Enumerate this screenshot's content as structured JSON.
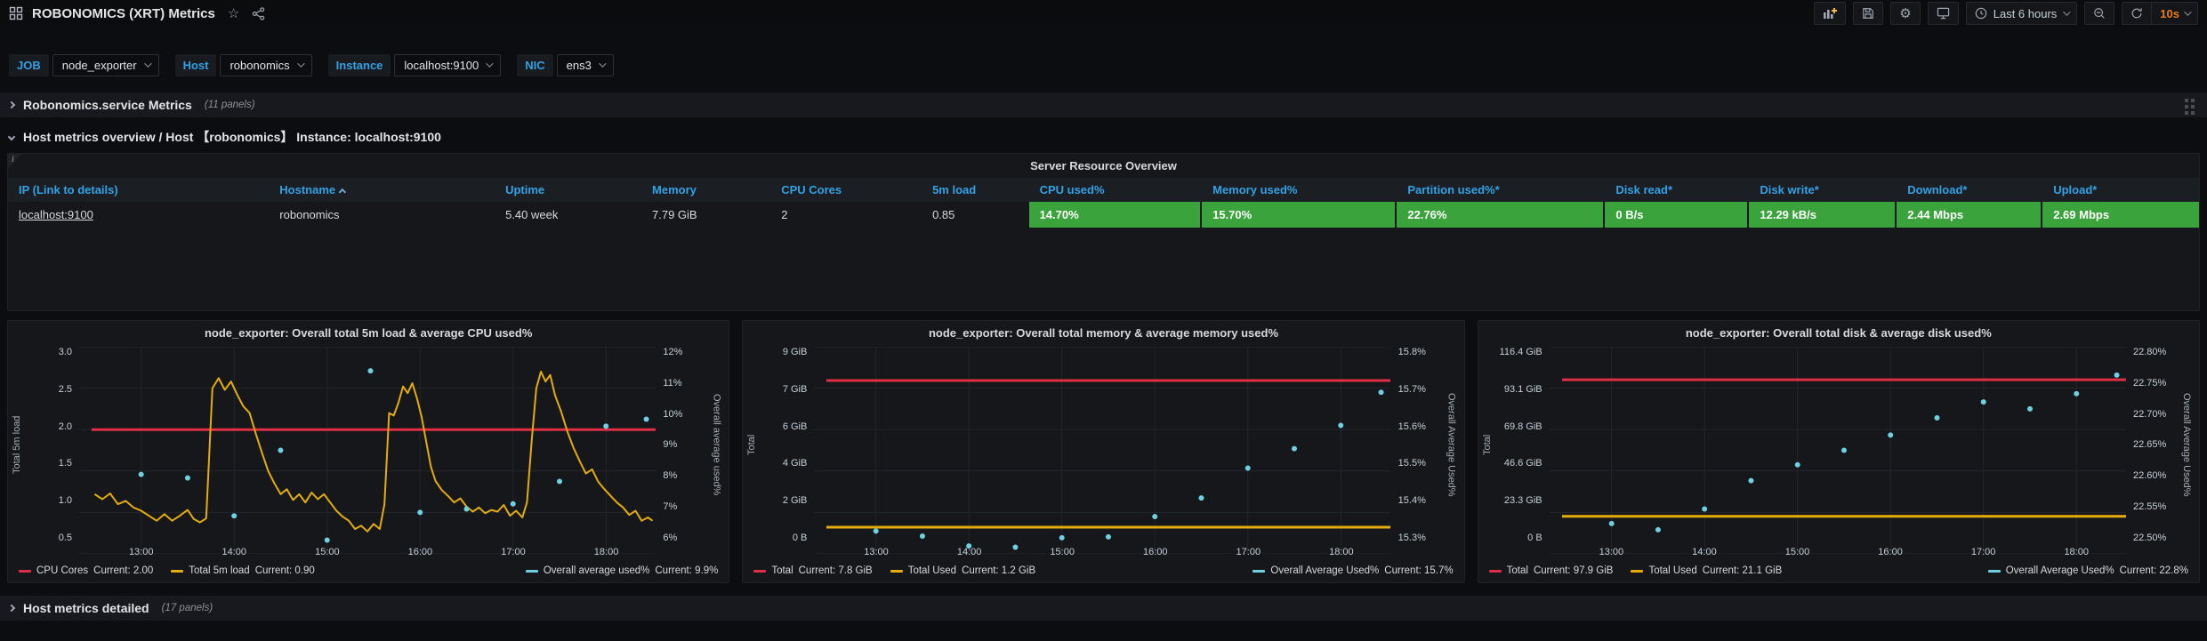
{
  "header": {
    "title": "ROBONOMICS (XRT) Metrics",
    "time_range": "Last 6 hours",
    "refresh_interval": "10s"
  },
  "icons": {
    "star": "☆",
    "gear": "⚙",
    "info": "i"
  },
  "colors": {
    "blue": "#33a2e5",
    "green": "#3aa33c",
    "red": "#e02f44",
    "yellow": "#e5ac0e",
    "cyan": "#6ed0e0",
    "orange": "#eb7b18"
  },
  "filters": [
    {
      "label": "JOB",
      "value": "node_exporter"
    },
    {
      "label": "Host",
      "value": "robonomics"
    },
    {
      "label": "Instance",
      "value": "localhost:9100"
    },
    {
      "label": "NIC",
      "value": "ens3"
    }
  ],
  "rows": [
    {
      "title": "Robonomics.service Metrics",
      "count": "(11 panels)",
      "collapsed": true
    },
    {
      "title": "Host metrics overview / Host 【robonomics】 Instance:  localhost:9100",
      "count": "",
      "collapsed": false
    },
    {
      "title": "Host metrics detailed",
      "count": "(17 panels)",
      "collapsed": true
    }
  ],
  "table": {
    "title": "Server Resource Overview",
    "columns": [
      "IP  (Link to details)",
      "Hostname",
      "Uptime",
      "Memory",
      "CPU Cores",
      "5m load",
      "CPU used%",
      "Memory used%",
      "Partition used%*",
      "Disk read*",
      "Disk write*",
      "Download*",
      "Upload*"
    ],
    "sorted_column": "Hostname",
    "cells": [
      "localhost:9100",
      "robonomics",
      "5.40 week",
      "7.79 GiB",
      "2",
      "0.85",
      "14.70%",
      "15.70%",
      "22.76%",
      "0 B/s",
      "12.29 kB/s",
      "2.44 Mbps",
      "2.69 Mbps"
    ]
  },
  "chart_data": [
    {
      "type": "line",
      "title": "node_exporter:  Overall total 5m load & average CPU used%",
      "x_range": [
        740,
        1112
      ],
      "x_gridlines": [
        780,
        840,
        900,
        960,
        1020,
        1080
      ],
      "x_tick_labels": [
        "13:00",
        "14:00",
        "15:00",
        "16:00",
        "17:00",
        "18:00"
      ],
      "left_axis": {
        "label": "Total 5m load",
        "min": 0.5,
        "max": 3.0,
        "ticks": [
          "0.5",
          "1.0",
          "1.5",
          "2.0",
          "2.5",
          "3.0"
        ]
      },
      "right_axis": {
        "label": "Overall average used%",
        "min": 6,
        "max": 12,
        "ticks": [
          "6%",
          "7%",
          "8%",
          "9%",
          "10%",
          "11%",
          "12%"
        ]
      },
      "series": [
        {
          "name": "CPU Cores",
          "current": "Current: 2.00",
          "type": "hline",
          "axis": "left",
          "side": "left",
          "color": "#e02f44",
          "value": 2.0
        },
        {
          "name": "Total 5m load",
          "current": "Current: 0.90",
          "type": "line",
          "axis": "left",
          "side": "left",
          "color": "#e5ac0e",
          "points": [
            [
              750,
              1.22
            ],
            [
              755,
              1.16
            ],
            [
              760,
              1.23
            ],
            [
              765,
              1.1
            ],
            [
              770,
              1.14
            ],
            [
              775,
              1.06
            ],
            [
              780,
              1.02
            ],
            [
              785,
              0.96
            ],
            [
              790,
              0.9
            ],
            [
              795,
              0.98
            ],
            [
              800,
              0.9
            ],
            [
              805,
              0.96
            ],
            [
              810,
              1.03
            ],
            [
              814,
              0.92
            ],
            [
              818,
              0.88
            ],
            [
              822,
              0.93
            ],
            [
              826,
              2.5
            ],
            [
              830,
              2.62
            ],
            [
              834,
              2.48
            ],
            [
              838,
              2.58
            ],
            [
              842,
              2.42
            ],
            [
              846,
              2.28
            ],
            [
              850,
              2.2
            ],
            [
              854,
              1.95
            ],
            [
              858,
              1.72
            ],
            [
              862,
              1.5
            ],
            [
              866,
              1.35
            ],
            [
              870,
              1.22
            ],
            [
              874,
              1.28
            ],
            [
              878,
              1.15
            ],
            [
              882,
              1.22
            ],
            [
              886,
              1.12
            ],
            [
              890,
              1.24
            ],
            [
              894,
              1.16
            ],
            [
              898,
              1.22
            ],
            [
              902,
              1.12
            ],
            [
              906,
              1.02
            ],
            [
              910,
              0.95
            ],
            [
              914,
              0.9
            ],
            [
              918,
              0.8
            ],
            [
              922,
              0.84
            ],
            [
              926,
              0.77
            ],
            [
              930,
              0.86
            ],
            [
              934,
              0.8
            ],
            [
              937,
              1.1
            ],
            [
              940,
              2.2
            ],
            [
              943,
              2.17
            ],
            [
              946,
              2.32
            ],
            [
              949,
              2.52
            ],
            [
              952,
              2.44
            ],
            [
              955,
              2.56
            ],
            [
              958,
              2.38
            ],
            [
              961,
              2.15
            ],
            [
              964,
              1.85
            ],
            [
              967,
              1.55
            ],
            [
              970,
              1.38
            ],
            [
              974,
              1.27
            ],
            [
              978,
              1.2
            ],
            [
              982,
              1.12
            ],
            [
              986,
              1.17
            ],
            [
              990,
              1.07
            ],
            [
              994,
              1.01
            ],
            [
              998,
              1.06
            ],
            [
              1002,
              0.99
            ],
            [
              1006,
              1.03
            ],
            [
              1010,
              1.01
            ],
            [
              1014,
              1.09
            ],
            [
              1018,
              0.96
            ],
            [
              1022,
              1.02
            ],
            [
              1026,
              0.94
            ],
            [
              1029,
              1.12
            ],
            [
              1032,
              1.85
            ],
            [
              1035,
              2.5
            ],
            [
              1038,
              2.7
            ],
            [
              1041,
              2.58
            ],
            [
              1044,
              2.66
            ],
            [
              1047,
              2.42
            ],
            [
              1051,
              2.22
            ],
            [
              1055,
              1.98
            ],
            [
              1059,
              1.78
            ],
            [
              1063,
              1.62
            ],
            [
              1067,
              1.47
            ],
            [
              1071,
              1.52
            ],
            [
              1075,
              1.37
            ],
            [
              1079,
              1.28
            ],
            [
              1083,
              1.2
            ],
            [
              1087,
              1.12
            ],
            [
              1091,
              1.06
            ],
            [
              1095,
              0.97
            ],
            [
              1099,
              1.02
            ],
            [
              1103,
              0.9
            ],
            [
              1107,
              0.94
            ],
            [
              1110,
              0.9
            ]
          ]
        },
        {
          "name": "Overall average used%",
          "current": "Current: 9.9%",
          "type": "scatter",
          "axis": "right",
          "side": "right",
          "color": "#6ed0e0",
          "points": [
            [
              780,
              8.3
            ],
            [
              810,
              8.2
            ],
            [
              840,
              7.1
            ],
            [
              870,
              9.0
            ],
            [
              900,
              6.4
            ],
            [
              928,
              11.3
            ],
            [
              960,
              7.2
            ],
            [
              990,
              7.3
            ],
            [
              1020,
              7.45
            ],
            [
              1050,
              8.1
            ],
            [
              1080,
              9.7
            ],
            [
              1106,
              9.9
            ]
          ]
        }
      ]
    },
    {
      "type": "line",
      "title": "node_exporter:  Overall total memory & average memory used%",
      "x_range": [
        740,
        1112
      ],
      "x_gridlines": [
        780,
        840,
        900,
        960,
        1020,
        1080
      ],
      "x_tick_labels": [
        "13:00",
        "14:00",
        "15:00",
        "16:00",
        "17:00",
        "18:00"
      ],
      "left_axis": {
        "label": "Total",
        "min": 0,
        "max": 10,
        "ticks": [
          "0 B",
          "2 GiB",
          "4 GiB",
          "6 GiB",
          "7 GiB",
          "9 GiB"
        ]
      },
      "right_axis": {
        "label": "Overall Average Used%",
        "min": 15.3,
        "max": 15.8,
        "ticks": [
          "15.3%",
          "15.4%",
          "15.5%",
          "15.6%",
          "15.7%",
          "15.8%"
        ]
      },
      "series": [
        {
          "name": "Total",
          "current": "Current: 7.8 GiB",
          "type": "hline",
          "axis": "left",
          "side": "left",
          "color": "#e02f44",
          "value": 8.37
        },
        {
          "name": "Total Used",
          "current": "Current: 1.2 GiB",
          "type": "hline",
          "axis": "left",
          "side": "left",
          "color": "#e5ac0e",
          "value": 1.29
        },
        {
          "name": "Overall Average Used%",
          "current": "Current: 15.7%",
          "type": "scatter",
          "axis": "right",
          "side": "right",
          "color": "#6ed0e0",
          "points": [
            [
              780,
              15.355
            ],
            [
              810,
              15.343
            ],
            [
              840,
              15.319
            ],
            [
              870,
              15.316
            ],
            [
              900,
              15.339
            ],
            [
              930,
              15.341
            ],
            [
              960,
              15.39
            ],
            [
              990,
              15.435
            ],
            [
              1020,
              15.507
            ],
            [
              1050,
              15.554
            ],
            [
              1080,
              15.61
            ],
            [
              1106,
              15.69
            ]
          ]
        }
      ]
    },
    {
      "type": "line",
      "title": "node_exporter:  Overall total disk & average disk used%",
      "x_range": [
        740,
        1112
      ],
      "x_gridlines": [
        780,
        840,
        900,
        960,
        1020,
        1080
      ],
      "x_tick_labels": [
        "13:00",
        "14:00",
        "15:00",
        "16:00",
        "17:00",
        "18:00"
      ],
      "left_axis": {
        "label": "Total",
        "min": 0,
        "max": 125,
        "ticks": [
          "0 B",
          "23.3 GiB",
          "46.6 GiB",
          "69.8 GiB",
          "93.1 GiB",
          "116.4 GiB"
        ]
      },
      "right_axis": {
        "label": "Overall Average Used%",
        "min": 22.5,
        "max": 22.8,
        "ticks": [
          "22.50%",
          "22.55%",
          "22.60%",
          "22.65%",
          "22.70%",
          "22.75%",
          "22.80%"
        ]
      },
      "series": [
        {
          "name": "Total",
          "current": "Current: 97.9 GiB",
          "type": "hline",
          "axis": "left",
          "side": "left",
          "color": "#e02f44",
          "value": 105.1
        },
        {
          "name": "Total Used",
          "current": "Current: 21.1 GiB",
          "type": "hline",
          "axis": "left",
          "side": "left",
          "color": "#e5ac0e",
          "value": 22.66
        },
        {
          "name": "Overall Average Used%",
          "current": "Current: 22.8%",
          "type": "scatter",
          "axis": "right",
          "side": "right",
          "color": "#6ed0e0",
          "points": [
            [
              780,
              22.544
            ],
            [
              810,
              22.535
            ],
            [
              840,
              22.565
            ],
            [
              870,
              22.606
            ],
            [
              900,
              22.629
            ],
            [
              930,
              22.65
            ],
            [
              960,
              22.672
            ],
            [
              990,
              22.697
            ],
            [
              1020,
              22.72
            ],
            [
              1050,
              22.71
            ],
            [
              1080,
              22.732
            ],
            [
              1106,
              22.759
            ]
          ]
        }
      ]
    }
  ]
}
